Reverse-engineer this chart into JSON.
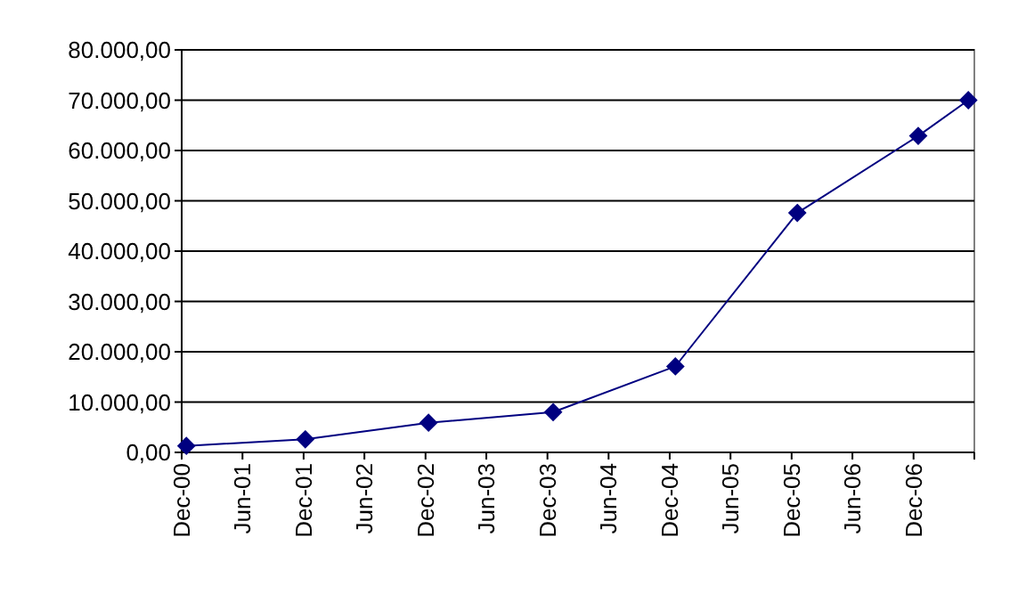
{
  "chart_data": {
    "type": "line",
    "x": [
      "2000-12-15",
      "2001-12-06",
      "2002-12-10",
      "2003-12-18",
      "2004-12-18",
      "2005-12-18",
      "2006-12-15",
      "2007-05-14"
    ],
    "series": [
      {
        "color": "#000080",
        "values": [
          1300,
          2600,
          5900,
          8000,
          17100,
          47600,
          62900,
          70000
        ]
      }
    ],
    "xlim": [
      "2000-12-01",
      "2007-06-01"
    ],
    "xticks": [
      {
        "value": "2000-12-01",
        "label": "Dec-00"
      },
      {
        "value": "2001-06-01",
        "label": "Jun-01"
      },
      {
        "value": "2001-12-01",
        "label": "Dec-01"
      },
      {
        "value": "2002-06-01",
        "label": "Jun-02"
      },
      {
        "value": "2002-12-01",
        "label": "Dec-02"
      },
      {
        "value": "2003-06-01",
        "label": "Jun-03"
      },
      {
        "value": "2003-12-01",
        "label": "Dec-03"
      },
      {
        "value": "2004-06-01",
        "label": "Jun-04"
      },
      {
        "value": "2004-12-01",
        "label": "Dec-04"
      },
      {
        "value": "2005-06-01",
        "label": "Jun-05"
      },
      {
        "value": "2005-12-01",
        "label": "Dec-05"
      },
      {
        "value": "2006-06-01",
        "label": "Jun-06"
      },
      {
        "value": "2006-12-01",
        "label": "Dec-06"
      },
      {
        "value": "2007-06-01",
        "label": null
      }
    ],
    "ylim": [
      0,
      80000
    ],
    "yticks": [
      {
        "value": 0,
        "label": "0,00"
      },
      {
        "value": 10000,
        "label": "10.000,00"
      },
      {
        "value": 20000,
        "label": "20.000,00"
      },
      {
        "value": 30000,
        "label": "30.000,00"
      },
      {
        "value": 40000,
        "label": "40.000,00"
      },
      {
        "value": 50000,
        "label": "50.000,00"
      },
      {
        "value": 60000,
        "label": "60.000,00"
      },
      {
        "value": 70000,
        "label": "70.000,00"
      },
      {
        "value": 80000,
        "label": "80.000,00"
      }
    ],
    "grid": "y",
    "marker": "diamond",
    "line_style": "solid"
  }
}
